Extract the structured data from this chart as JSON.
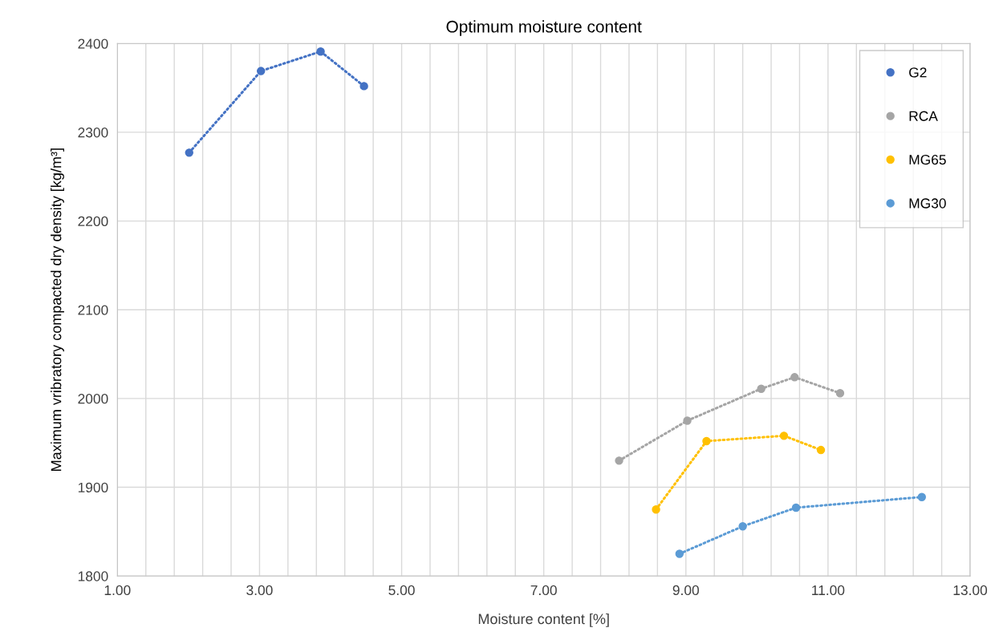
{
  "chart_data": {
    "type": "line",
    "title": "Optimum moisture content",
    "xlabel": "Moisture content [%]",
    "ylabel": "Maximum vribratory compacted dry density [kg/m³]",
    "series": [
      {
        "name": "G2",
        "color": "#4472c4",
        "x": [
          2.01,
          3.02,
          3.86,
          4.47
        ],
        "values": [
          2277,
          2369,
          2391,
          2352
        ]
      },
      {
        "name": "RCA",
        "color": "#a5a5a5",
        "x": [
          8.06,
          9.02,
          10.06,
          10.53,
          11.17
        ],
        "values": [
          1930,
          1975,
          2011,
          2024,
          2006
        ]
      },
      {
        "name": "MG65",
        "color": "#ffc000",
        "x": [
          8.58,
          9.29,
          10.38,
          10.9
        ],
        "values": [
          1875,
          1952,
          1958,
          1942
        ]
      },
      {
        "name": "MG30",
        "color": "#5b9bd5",
        "x": [
          8.91,
          9.8,
          10.55,
          12.32
        ],
        "values": [
          1825,
          1856,
          1877,
          1889
        ]
      }
    ],
    "xlim": [
      1,
      13
    ],
    "xticks": [
      {
        "value": 1,
        "label": "1.00"
      },
      {
        "value": 1.4,
        "label": null
      },
      {
        "value": 1.8,
        "label": null
      },
      {
        "value": 2.2,
        "label": null
      },
      {
        "value": 2.6,
        "label": null
      },
      {
        "value": 3,
        "label": "3.00"
      },
      {
        "value": 3.4,
        "label": null
      },
      {
        "value": 3.8,
        "label": null
      },
      {
        "value": 4.2,
        "label": null
      },
      {
        "value": 4.6,
        "label": null
      },
      {
        "value": 5,
        "label": "5.00"
      },
      {
        "value": 5.4,
        "label": null
      },
      {
        "value": 5.8,
        "label": null
      },
      {
        "value": 6.2,
        "label": null
      },
      {
        "value": 6.6,
        "label": null
      },
      {
        "value": 7,
        "label": "7.00"
      },
      {
        "value": 7.4,
        "label": null
      },
      {
        "value": 7.8,
        "label": null
      },
      {
        "value": 8.2,
        "label": null
      },
      {
        "value": 8.6,
        "label": null
      },
      {
        "value": 9,
        "label": "9.00"
      },
      {
        "value": 9.4,
        "label": null
      },
      {
        "value": 9.8,
        "label": null
      },
      {
        "value": 10.2,
        "label": null
      },
      {
        "value": 10.6,
        "label": null
      },
      {
        "value": 11,
        "label": "11.00"
      },
      {
        "value": 11.4,
        "label": null
      },
      {
        "value": 11.8,
        "label": null
      },
      {
        "value": 12.2,
        "label": null
      },
      {
        "value": 12.6,
        "label": null
      },
      {
        "value": 13,
        "label": "13.00"
      }
    ],
    "ylim": [
      1800,
      2400
    ],
    "yticks": [
      1800,
      1900,
      2000,
      2100,
      2200,
      2300,
      2400
    ],
    "grid": true,
    "legend": "top right",
    "marker": "circle",
    "line_style": "dotted"
  }
}
